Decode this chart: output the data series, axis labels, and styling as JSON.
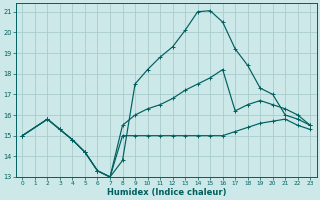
{
  "xlabel": "Humidex (Indice chaleur)",
  "bg_color": "#cde8e8",
  "grid_color": "#aacccc",
  "line_color": "#005f5f",
  "xlim": [
    -0.5,
    23.5
  ],
  "ylim": [
    13,
    21.4
  ],
  "xticks": [
    0,
    1,
    2,
    3,
    4,
    5,
    6,
    7,
    8,
    9,
    10,
    11,
    12,
    13,
    14,
    15,
    16,
    17,
    18,
    19,
    20,
    21,
    22,
    23
  ],
  "yticks": [
    13,
    14,
    15,
    16,
    17,
    18,
    19,
    20,
    21
  ],
  "line3_x": [
    0,
    2,
    3,
    4,
    5,
    6,
    7,
    8,
    9,
    10,
    11,
    12,
    13,
    14,
    15,
    16,
    17,
    18,
    19,
    20,
    21,
    22,
    23
  ],
  "line3_y": [
    15.0,
    15.8,
    15.3,
    14.8,
    14.2,
    13.3,
    13.0,
    13.8,
    17.5,
    18.2,
    18.8,
    19.3,
    20.1,
    21.0,
    21.05,
    20.5,
    19.2,
    18.4,
    17.3,
    17.0,
    16.0,
    15.8,
    15.5
  ],
  "line2_x": [
    0,
    2,
    3,
    4,
    5,
    6,
    7,
    8,
    9,
    10,
    11,
    12,
    13,
    14,
    15,
    16,
    17,
    18,
    19,
    20,
    21,
    22,
    23
  ],
  "line2_y": [
    15.0,
    15.8,
    15.3,
    14.8,
    14.2,
    13.3,
    13.0,
    15.5,
    16.0,
    16.3,
    16.5,
    16.8,
    17.2,
    17.5,
    17.8,
    18.2,
    16.2,
    16.5,
    16.7,
    16.5,
    16.3,
    16.0,
    15.5
  ],
  "line1_x": [
    0,
    2,
    3,
    4,
    5,
    6,
    7,
    8,
    9,
    10,
    11,
    12,
    13,
    14,
    15,
    16,
    17,
    18,
    19,
    20,
    21,
    22,
    23
  ],
  "line1_y": [
    15.0,
    15.8,
    15.3,
    14.8,
    14.2,
    13.3,
    13.0,
    15.0,
    15.0,
    15.0,
    15.0,
    15.0,
    15.0,
    15.0,
    15.0,
    15.0,
    15.2,
    15.4,
    15.6,
    15.7,
    15.8,
    15.5,
    15.3
  ]
}
